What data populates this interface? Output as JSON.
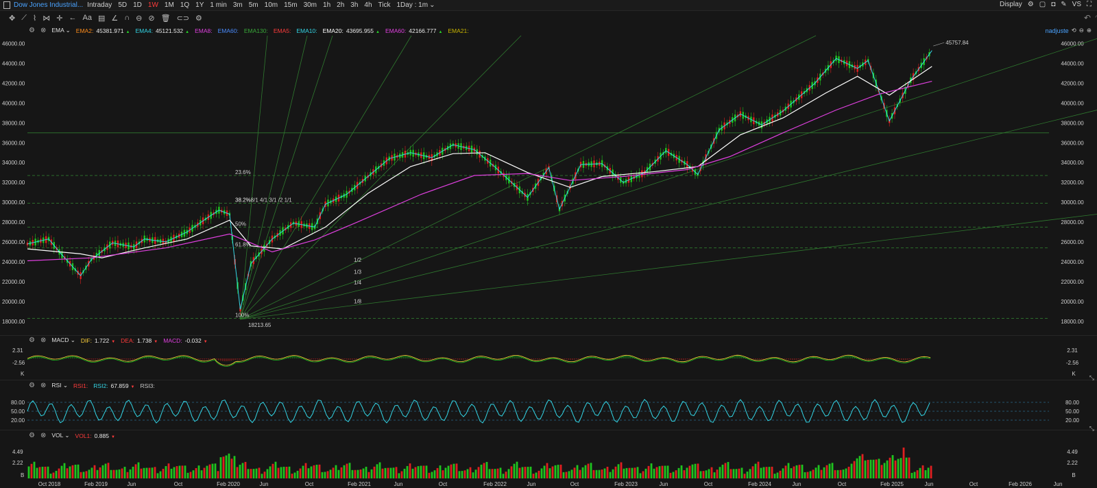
{
  "symbol": "Dow Jones Industrial...",
  "timeframes": [
    "Intraday",
    "5D",
    "1D",
    "1W",
    "1M",
    "1Q",
    "1Y",
    "1 min",
    "3m",
    "5m",
    "10m",
    "15m",
    "30m",
    "1h",
    "2h",
    "3h",
    "4h",
    "Tick"
  ],
  "active_timeframe": "1W",
  "interval": "1Day : 1m",
  "display_label": "Display",
  "vs_label": "VS",
  "nadjuste": "nadjuste",
  "ema_legend": {
    "name": "EMA",
    "items": [
      {
        "label": "EMA2:",
        "value": "45381.971",
        "color": "#ff8c1a",
        "arrow": "▲"
      },
      {
        "label": "EMA4:",
        "value": "45121.532",
        "color": "#33d6e6",
        "arrow": "▲"
      },
      {
        "label": "EMA8:",
        "value": "",
        "color": "#e040e0",
        "arrow": ""
      },
      {
        "label": "EMA60:",
        "value": "",
        "color": "#4a8cff",
        "arrow": ""
      },
      {
        "label": "EMA130:",
        "value": "",
        "color": "#39a839",
        "arrow": ""
      },
      {
        "label": "EMA5:",
        "value": "",
        "color": "#ff3b3b",
        "arrow": ""
      },
      {
        "label": "EMA10:",
        "value": "",
        "color": "#33d6e6",
        "arrow": ""
      },
      {
        "label": "EMA20:",
        "value": "43695.955",
        "color": "#ffffff",
        "arrow": "▲"
      },
      {
        "label": "EMA60:",
        "value": "42166.777",
        "color": "#e040e0",
        "arrow": "▲"
      },
      {
        "label": "EMA21:",
        "value": "",
        "color": "#c8b400",
        "arrow": ""
      }
    ]
  },
  "macd_legend": {
    "name": "MACD",
    "items": [
      {
        "label": "DIF:",
        "value": "1.722",
        "color": "#ffd23a",
        "arrow": "▼"
      },
      {
        "label": "DEA:",
        "value": "1.738",
        "color": "#ff3b3b",
        "arrow": "▼"
      },
      {
        "label": "MACD:",
        "value": "-0.032",
        "color": "#e040e0",
        "arrow": "▼"
      }
    ]
  },
  "rsi_legend": {
    "name": "RSI",
    "items": [
      {
        "label": "RSI1:",
        "value": "",
        "color": "#ff3b3b",
        "arrow": ""
      },
      {
        "label": "RSI2:",
        "value": "67.859",
        "color": "#33d6e6",
        "arrow": "▼"
      },
      {
        "label": "RSI3:",
        "value": "",
        "color": "#c8c8c8",
        "arrow": ""
      }
    ]
  },
  "vol_legend": {
    "name": "VOL",
    "items": [
      {
        "label": "VOL1:",
        "value": "0.885",
        "color": "#ff3b3b",
        "arrow": "▼"
      }
    ]
  },
  "chart_data": {
    "type": "line",
    "price_axis": {
      "ticks": [
        "46000.00",
        "44000.00",
        "42000.00",
        "40000.00",
        "38000.00",
        "36000.00",
        "34000.00",
        "32000.00",
        "30000.00",
        "28000.00",
        "26000.00",
        "24000.00",
        "22000.00",
        "20000.00",
        "18000.00"
      ],
      "ylim": [
        17500,
        46800
      ]
    },
    "x_ticks": [
      "Oct 2018",
      "Feb 2019",
      "Jun",
      "Oct",
      "Feb 2020",
      "Jun",
      "Oct",
      "Feb 2021",
      "Jun",
      "Oct",
      "Feb 2022",
      "Jun",
      "Oct",
      "Feb 2023",
      "Jun",
      "Oct",
      "Feb 2024",
      "Jun",
      "Oct",
      "Feb 2025",
      "Jun",
      "Oct",
      "Feb 2026",
      "Jun"
    ],
    "x_range": [
      "2018-07",
      "2026-07"
    ],
    "last_date": "2025-08",
    "price_series": [
      [
        "2018-07",
        25800
      ],
      [
        "2018-09",
        26300
      ],
      [
        "2018-10",
        25000
      ],
      [
        "2018-12",
        22600
      ],
      [
        "2019-01",
        24200
      ],
      [
        "2019-03",
        25900
      ],
      [
        "2019-05",
        25500
      ],
      [
        "2019-06",
        26300
      ],
      [
        "2019-08",
        26000
      ],
      [
        "2019-10",
        27000
      ],
      [
        "2019-12",
        28500
      ],
      [
        "2020-01",
        29200
      ],
      [
        "2020-02",
        28800
      ],
      [
        "2020-03",
        19200
      ],
      [
        "2020-04",
        23800
      ],
      [
        "2020-06",
        26300
      ],
      [
        "2020-08",
        27900
      ],
      [
        "2020-10",
        27500
      ],
      [
        "2020-11",
        29800
      ],
      [
        "2021-01",
        30800
      ],
      [
        "2021-03",
        32600
      ],
      [
        "2021-05",
        34400
      ],
      [
        "2021-07",
        35000
      ],
      [
        "2021-09",
        34500
      ],
      [
        "2021-11",
        35800
      ],
      [
        "2022-01",
        35300
      ],
      [
        "2022-03",
        33500
      ],
      [
        "2022-06",
        30500
      ],
      [
        "2022-08",
        33500
      ],
      [
        "2022-09",
        29300
      ],
      [
        "2022-11",
        33800
      ],
      [
        "2023-01",
        33900
      ],
      [
        "2023-03",
        32000
      ],
      [
        "2023-05",
        33000
      ],
      [
        "2023-07",
        35200
      ],
      [
        "2023-09",
        33800
      ],
      [
        "2023-10",
        32800
      ],
      [
        "2023-12",
        37300
      ],
      [
        "2024-02",
        38900
      ],
      [
        "2024-04",
        37800
      ],
      [
        "2024-06",
        39200
      ],
      [
        "2024-09",
        42000
      ],
      [
        "2024-11",
        44500
      ],
      [
        "2025-01",
        43500
      ],
      [
        "2025-02",
        44300
      ],
      [
        "2025-04",
        38200
      ],
      [
        "2025-06",
        42300
      ],
      [
        "2025-08",
        45300
      ]
    ],
    "ema_series": [
      {
        "name": "EMA20",
        "color": "#ffffff",
        "points": [
          [
            "2018-07",
            25300
          ],
          [
            "2018-12",
            24800
          ],
          [
            "2019-02",
            24400
          ],
          [
            "2019-06",
            25400
          ],
          [
            "2019-10",
            26300
          ],
          [
            "2020-02",
            28200
          ],
          [
            "2020-04",
            25600
          ],
          [
            "2020-07",
            25300
          ],
          [
            "2020-11",
            27500
          ],
          [
            "2021-03",
            30900
          ],
          [
            "2021-07",
            33600
          ],
          [
            "2021-11",
            34900
          ],
          [
            "2022-02",
            35000
          ],
          [
            "2022-06",
            33000
          ],
          [
            "2022-10",
            31500
          ],
          [
            "2023-01",
            32600
          ],
          [
            "2023-06",
            33100
          ],
          [
            "2023-10",
            33600
          ],
          [
            "2024-02",
            36800
          ],
          [
            "2024-06",
            38500
          ],
          [
            "2024-10",
            41000
          ],
          [
            "2025-01",
            42700
          ],
          [
            "2025-04",
            40800
          ],
          [
            "2025-08",
            43700
          ]
        ]
      },
      {
        "name": "EMA60",
        "color": "#e040e0",
        "points": [
          [
            "2018-07",
            24100
          ],
          [
            "2019-01",
            24400
          ],
          [
            "2019-08",
            25400
          ],
          [
            "2020-02",
            26800
          ],
          [
            "2020-06",
            25000
          ],
          [
            "2020-10",
            26200
          ],
          [
            "2021-02",
            28000
          ],
          [
            "2021-08",
            30800
          ],
          [
            "2022-01",
            32700
          ],
          [
            "2022-06",
            32900
          ],
          [
            "2022-10",
            32200
          ],
          [
            "2023-03",
            32600
          ],
          [
            "2023-09",
            33300
          ],
          [
            "2024-01",
            34600
          ],
          [
            "2024-06",
            37000
          ],
          [
            "2024-11",
            39300
          ],
          [
            "2025-03",
            40900
          ],
          [
            "2025-08",
            42200
          ]
        ]
      }
    ],
    "annotations": {
      "high_label": "45757.84",
      "low_label": "18213.65"
    },
    "fib_levels": [
      {
        "label": "23.6%",
        "value": 32700
      },
      {
        "label": "38.2%",
        "value": 29900
      },
      {
        "label": "50%",
        "value": 27500
      },
      {
        "label": "61.8%",
        "value": 25400
      },
      {
        "label": "100%",
        "value": 18300
      }
    ],
    "fan_labels": [
      "1/8",
      "1/4",
      "1/3",
      "1/2",
      "1/1",
      "2/1",
      "3/1",
      "4/1",
      "8/1"
    ],
    "fan_label_text": "38.2%8/1 4/1 3/1 /2 1/1",
    "resistance_level": 37000,
    "macd_axis": {
      "ticks": [
        "2.31",
        "-2.56"
      ],
      "bottom_label": "K"
    },
    "rsi_axis": {
      "ticks": [
        "80.00",
        "50.00",
        "20.00"
      ]
    },
    "vol_axis": {
      "ticks": [
        "4.49",
        "2.22",
        "B"
      ]
    }
  }
}
